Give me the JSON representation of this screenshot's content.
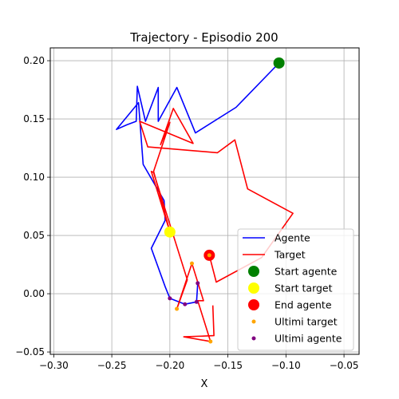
{
  "chart_data": {
    "type": "line",
    "title": "Trajectory - Episodio 200",
    "xlabel": "X",
    "ylabel": "",
    "xlim": [
      -0.303,
      -0.037
    ],
    "ylim": [
      -0.052,
      0.211
    ],
    "xticks": [
      -0.3,
      -0.25,
      -0.2,
      -0.15,
      -0.1,
      -0.05
    ],
    "xtick_labels": [
      "−0.30",
      "−0.25",
      "−0.20",
      "−0.15",
      "−0.10",
      "−0.05"
    ],
    "yticks": [
      -0.05,
      0.0,
      0.05,
      0.1,
      0.15,
      0.2
    ],
    "ytick_labels": [
      "−0.05",
      "0.00",
      "0.05",
      "0.10",
      "0.15",
      "0.20"
    ],
    "grid": true,
    "legend_position": "lower-right",
    "series": [
      {
        "name": "Agente",
        "kind": "line",
        "color": "#0000ff",
        "points": [
          [
            -0.106,
            0.198
          ],
          [
            -0.143,
            0.16
          ],
          [
            -0.178,
            0.138
          ],
          [
            -0.194,
            0.177
          ],
          [
            -0.21,
            0.148
          ],
          [
            -0.21,
            0.177
          ],
          [
            -0.221,
            0.148
          ],
          [
            -0.228,
            0.178
          ],
          [
            -0.229,
            0.148
          ],
          [
            -0.237,
            0.145
          ],
          [
            -0.246,
            0.141
          ],
          [
            -0.227,
            0.164
          ],
          [
            -0.223,
            0.111
          ],
          [
            -0.205,
            0.08
          ],
          [
            -0.204,
            0.063
          ],
          [
            -0.216,
            0.039
          ],
          [
            -0.204,
            0.006
          ],
          [
            -0.2,
            -0.004
          ],
          [
            -0.187,
            -0.009
          ],
          [
            -0.177,
            -0.007
          ],
          [
            -0.176,
            0.009
          ]
        ]
      },
      {
        "name": "Target",
        "kind": "line",
        "color": "#ff0000",
        "points": [
          [
            -0.166,
            0.033
          ],
          [
            -0.16,
            0.01
          ],
          [
            -0.121,
            0.031
          ],
          [
            -0.094,
            0.069
          ],
          [
            -0.133,
            0.09
          ],
          [
            -0.144,
            0.132
          ],
          [
            -0.159,
            0.121
          ],
          [
            -0.219,
            0.126
          ],
          [
            -0.226,
            0.148
          ],
          [
            -0.18,
            0.129
          ],
          [
            -0.197,
            0.159
          ],
          [
            -0.208,
            0.128
          ],
          [
            -0.2,
            0.147
          ],
          [
            -0.214,
            0.105
          ],
          [
            -0.2,
            0.053
          ],
          [
            -0.216,
            0.105
          ],
          [
            -0.214,
            0.104
          ],
          [
            -0.185,
            0.012
          ],
          [
            -0.194,
            -0.013
          ],
          [
            -0.181,
            0.026
          ],
          [
            -0.171,
            -0.006
          ],
          [
            -0.176,
            -0.006
          ],
          [
            -0.165,
            -0.041
          ],
          [
            -0.188,
            -0.037
          ],
          [
            -0.162,
            -0.036
          ],
          [
            -0.163,
            -0.01
          ]
        ]
      },
      {
        "name": "Start agente",
        "kind": "marker",
        "color": "#008000",
        "points": [
          [
            -0.106,
            0.198
          ]
        ]
      },
      {
        "name": "Start target",
        "kind": "marker",
        "color": "#ffff00",
        "points": [
          [
            -0.2,
            0.053
          ]
        ]
      },
      {
        "name": "End agente",
        "kind": "marker",
        "color": "#ff0000",
        "points": [
          [
            -0.166,
            0.033
          ]
        ]
      },
      {
        "name": "Ultimi target",
        "kind": "scatter",
        "color": "#ffa500",
        "points": [
          [
            -0.181,
            0.026
          ],
          [
            -0.194,
            -0.013
          ],
          [
            -0.165,
            -0.041
          ],
          [
            -0.166,
            0.033
          ]
        ]
      },
      {
        "name": "Ultimi agente",
        "kind": "scatter",
        "color": "#800080",
        "points": [
          [
            -0.176,
            0.009
          ],
          [
            -0.177,
            -0.007
          ],
          [
            -0.187,
            -0.009
          ],
          [
            -0.2,
            -0.004
          ]
        ]
      }
    ]
  }
}
